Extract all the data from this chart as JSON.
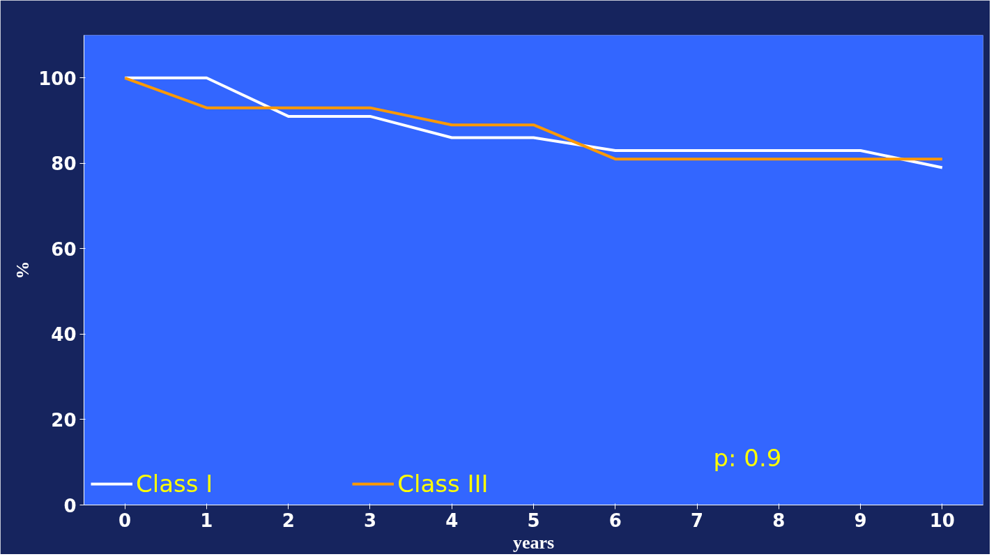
{
  "chart_data": {
    "type": "line",
    "xlabel": "years",
    "ylabel": "%",
    "categories": [
      "0",
      "1",
      "2",
      "3",
      "4",
      "5",
      "6",
      "7",
      "8",
      "9",
      "10"
    ],
    "series": [
      {
        "name": "Class I",
        "color": "#ffffff",
        "values": [
          100,
          100,
          91,
          91,
          86,
          86,
          83,
          83,
          83,
          83,
          79
        ]
      },
      {
        "name": "Class III",
        "color": "#ff9900",
        "values": [
          100,
          93,
          93,
          93,
          89,
          89,
          81,
          81,
          81,
          81,
          81
        ]
      }
    ],
    "ylim": [
      0,
      110
    ],
    "yticks": [
      0,
      20,
      40,
      60,
      80,
      100
    ],
    "grid": false,
    "legend": "bottom left",
    "marker": "none",
    "line_style": "solid",
    "annotations": [
      "p: 0.9"
    ]
  }
}
